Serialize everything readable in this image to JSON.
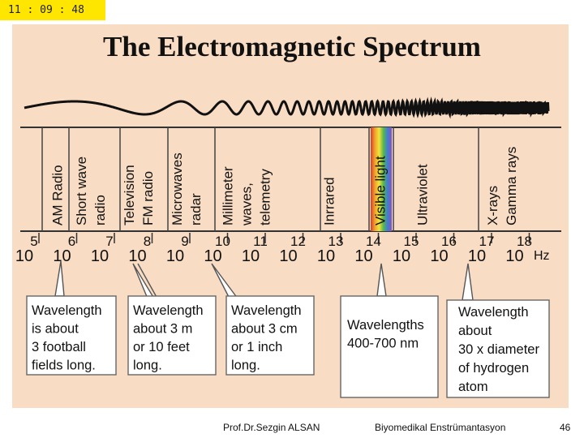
{
  "clock": "11 : 09 : 48",
  "title": "The Electromagnetic Spectrum",
  "bands": [
    {
      "lines": [
        "AM Radio"
      ]
    },
    {
      "lines": [
        "Short wave",
        "radio"
      ]
    },
    {
      "lines": [
        "Television",
        "FM radio"
      ]
    },
    {
      "lines": [
        "Microwaves",
        "radar"
      ]
    },
    {
      "lines": [
        "Millimeter",
        "waves,",
        "telemetry"
      ]
    },
    {
      "lines": [
        "Inrrared"
      ]
    },
    {
      "lines": [
        "Visible light"
      ]
    },
    {
      "lines": [
        "Ultraviolet"
      ]
    },
    {
      "lines": [
        "X-rays",
        "Gamma rays"
      ]
    }
  ],
  "exponents": [
    "5",
    "6",
    "7",
    "8",
    "9",
    "10",
    "11",
    "12",
    "13",
    "14",
    "15",
    "16",
    "17",
    "18"
  ],
  "base": "10",
  "unit": "Hz",
  "callouts": [
    {
      "lines": [
        "Wavelength",
        "is about",
        "3 football",
        "fields long."
      ]
    },
    {
      "lines": [
        "Wavelength",
        "about 3 m",
        "or 10 feet",
        "long."
      ]
    },
    {
      "lines": [
        "Wavelength",
        "about 3 cm",
        "or 1 inch",
        "long."
      ]
    },
    {
      "lines": [
        "Wavelengths",
        "400-700 nm"
      ]
    },
    {
      "lines": [
        "Wavelength",
        "about",
        "30 x diameter",
        "of hydrogen",
        "atom"
      ]
    }
  ],
  "footer": {
    "author": "Prof.Dr.Sezgin ALSAN",
    "course": "Biyomedikal Enstrümantasyon",
    "page": "46"
  },
  "colors": {
    "background": "#f8dcc3",
    "clock": "#ffe600",
    "spectrum": [
      "#d93a2b",
      "#f0a22c",
      "#f3e33a",
      "#58b84b",
      "#3f7fd0",
      "#8a4fc0"
    ]
  }
}
